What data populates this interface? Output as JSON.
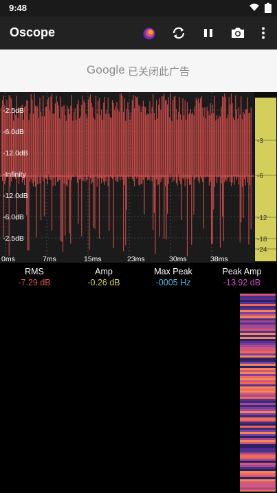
{
  "status_bar": {
    "time": "9:48"
  },
  "app": {
    "title": "Oscope"
  },
  "toolbar_icons": [
    "app-logo-icon",
    "sync-icon",
    "pause-icon",
    "camera-icon",
    "more-vert-icon"
  ],
  "ad": {
    "logo": "Google",
    "text": "已关闭此广告"
  },
  "scope": {
    "db_labels": [
      "-2.5dB",
      "-6.0dB",
      "-12.0dB",
      "-Infinity",
      "-12.0dB",
      "-6.0dB",
      "-2.5dB"
    ],
    "time_labels": [
      "0ms",
      "7ms",
      "15ms",
      "23ms",
      "30ms",
      "38ms"
    ],
    "meter_labels": [
      "-3",
      "-6",
      "-12",
      "-18",
      "-24"
    ],
    "colors": {
      "waveform": "#e0524f",
      "meter": "#d4cf5a",
      "background": "#1b1b1b",
      "grid": "#6a6a6a"
    }
  },
  "stats": [
    {
      "label": "RMS",
      "value": "-7.29 dB",
      "color": "#e05050"
    },
    {
      "label": "Amp",
      "value": "-0.26 dB",
      "color": "#d8d160"
    },
    {
      "label": "Max Peak",
      "value": "-0005 Hz",
      "color": "#4fb7e8"
    },
    {
      "label": "Peak Amp",
      "value": "-13.92 dB",
      "color": "#d44fc8"
    }
  ]
}
